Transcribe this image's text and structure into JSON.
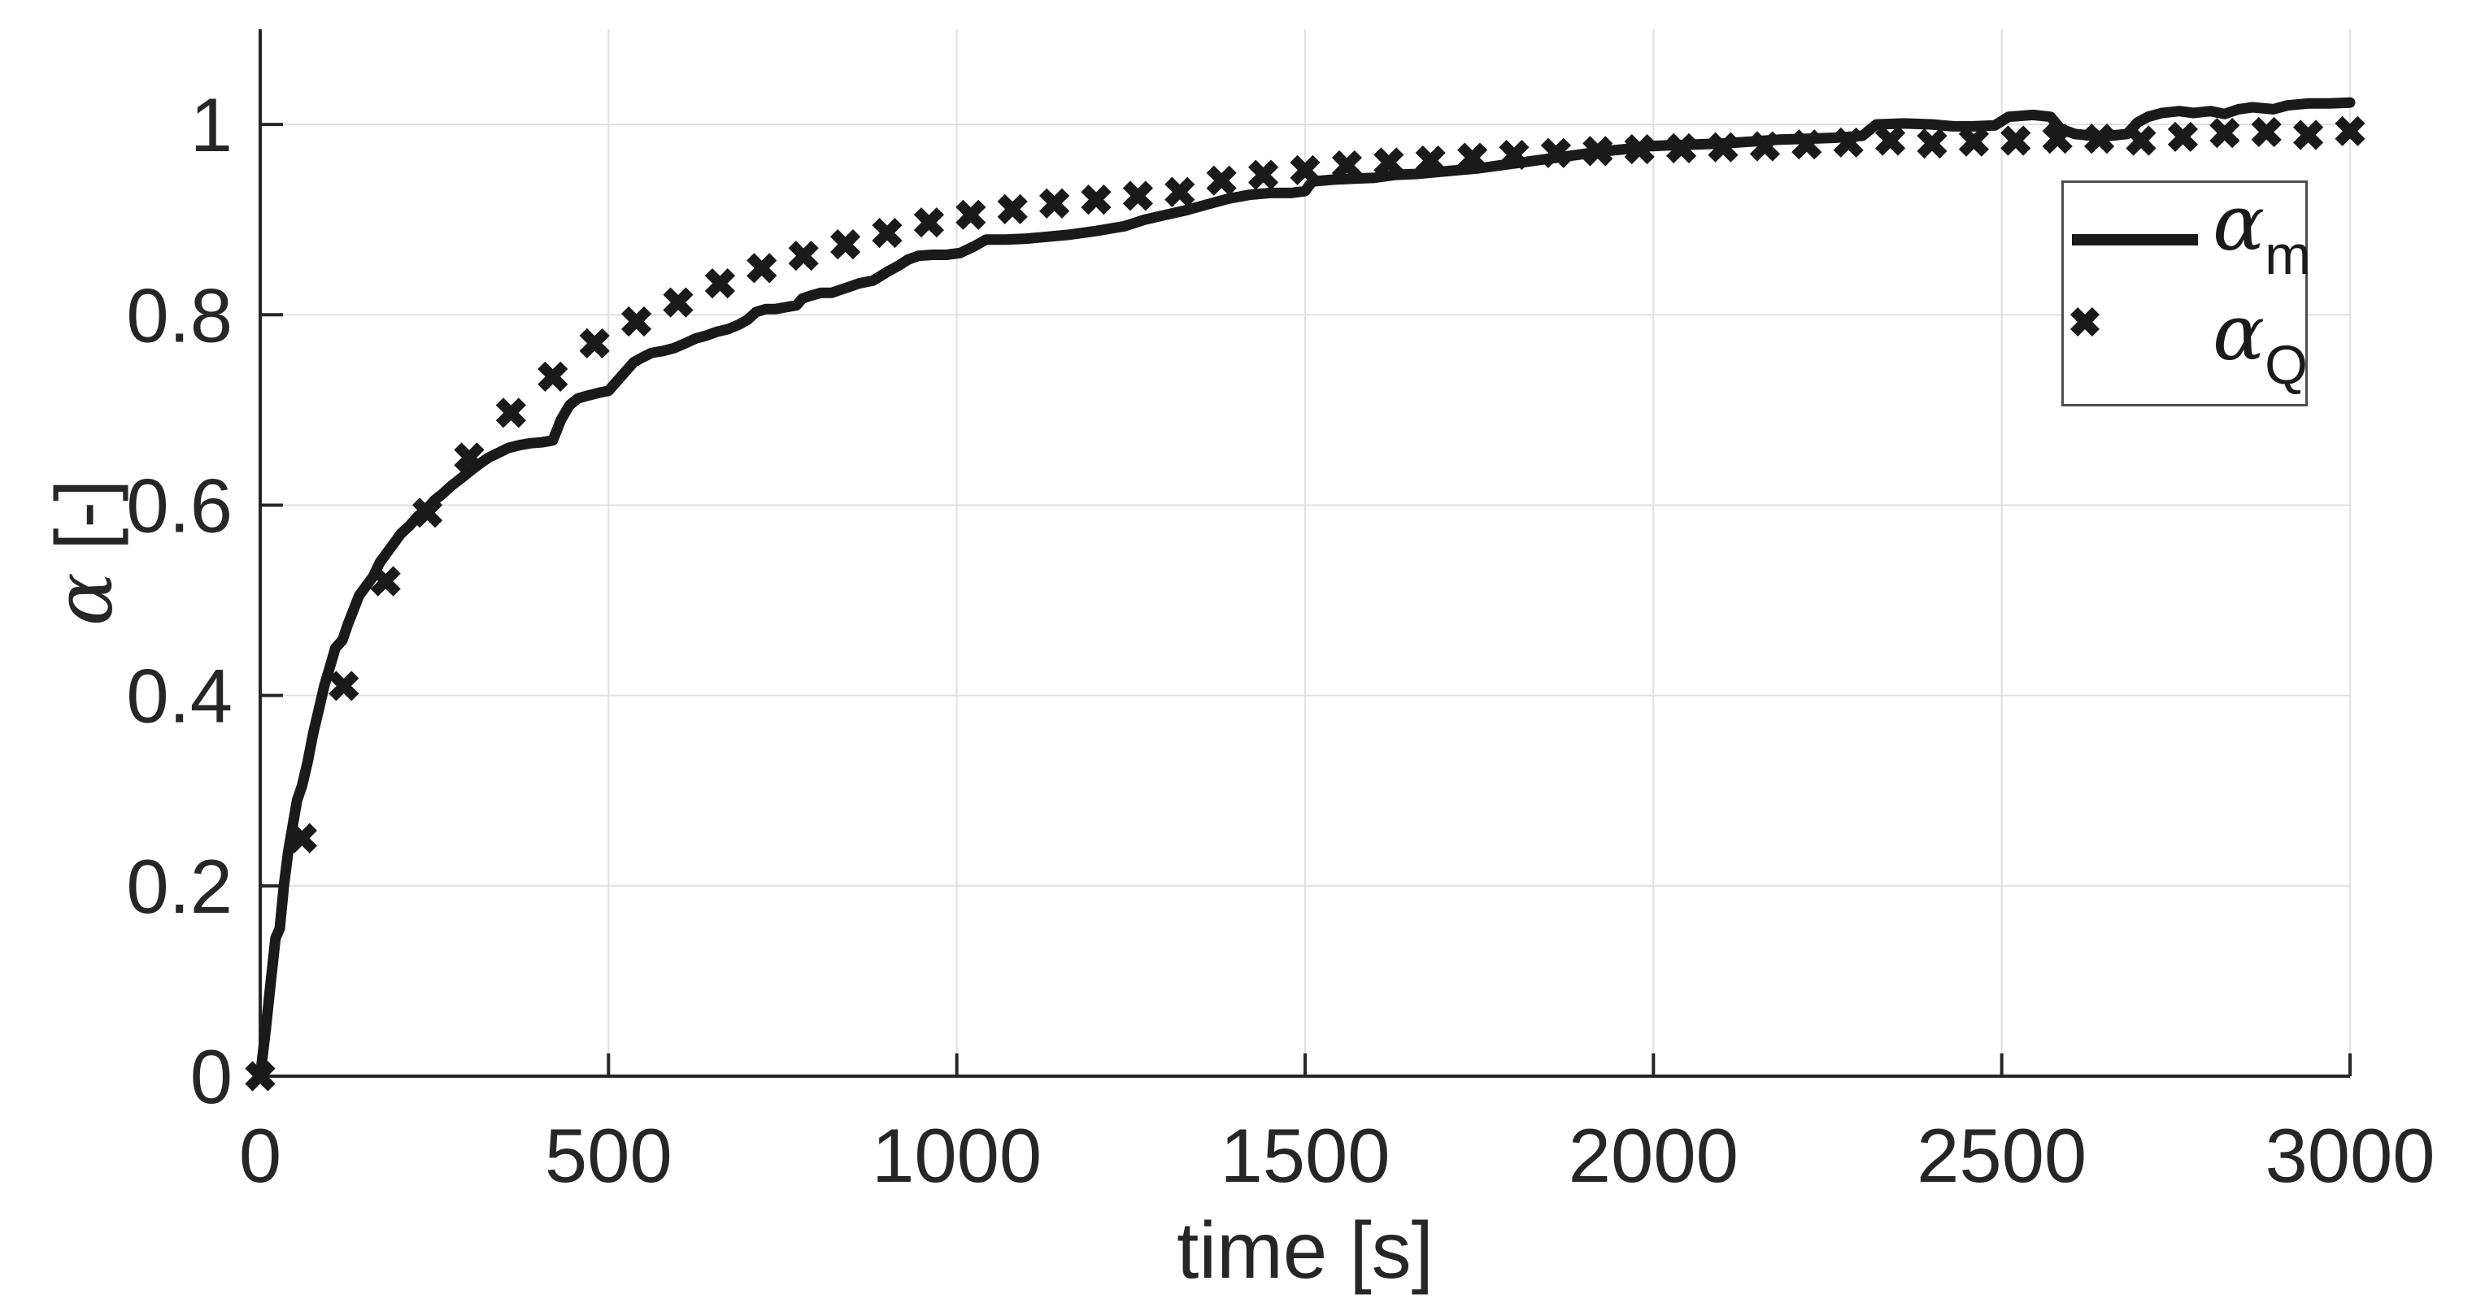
{
  "colors": {
    "background": "#ffffff",
    "series": "#1a1a1a",
    "grid": "#e0e0e0",
    "axis": "#262626",
    "text": "#262626",
    "legend_border": "#4d4d4d"
  },
  "chart_data": {
    "type": "line",
    "title": "",
    "xlabel": "time [s]",
    "ylabel_symbol": "α",
    "ylabel_rest": " [-]",
    "xlim": [
      0,
      3000
    ],
    "ylim": [
      0,
      1.1
    ],
    "grid": true,
    "legend_position": "upper-right-inside",
    "xticks": {
      "values": [
        0,
        500,
        1000,
        1500,
        2000,
        2500,
        3000
      ],
      "labels": [
        "0",
        "500",
        "1000",
        "1500",
        "2000",
        "2500",
        "3000"
      ]
    },
    "yticks": {
      "values": [
        0,
        0.2,
        0.4,
        0.6,
        0.8,
        1
      ],
      "labels": [
        "0",
        "0.2",
        "0.4",
        "0.6",
        "0.8",
        "1"
      ]
    },
    "legend": {
      "entries": [
        {
          "type": "line",
          "symbol": "α",
          "subscript": "m"
        },
        {
          "type": "marker-x",
          "symbol": "α",
          "subscript": "Q"
        }
      ]
    },
    "series": [
      {
        "name": "alpha_m",
        "style": "solid-line",
        "points": [
          [
            0,
            0
          ],
          [
            8,
            0.05
          ],
          [
            16,
            0.105
          ],
          [
            22,
            0.145
          ],
          [
            28,
            0.155
          ],
          [
            34,
            0.2
          ],
          [
            40,
            0.235
          ],
          [
            47,
            0.265
          ],
          [
            53,
            0.29
          ],
          [
            60,
            0.305
          ],
          [
            68,
            0.33
          ],
          [
            76,
            0.36
          ],
          [
            84,
            0.385
          ],
          [
            92,
            0.41
          ],
          [
            100,
            0.43
          ],
          [
            108,
            0.45
          ],
          [
            118,
            0.458
          ],
          [
            126,
            0.475
          ],
          [
            134,
            0.49
          ],
          [
            142,
            0.505
          ],
          [
            152,
            0.515
          ],
          [
            162,
            0.525
          ],
          [
            172,
            0.54
          ],
          [
            182,
            0.55
          ],
          [
            192,
            0.56
          ],
          [
            202,
            0.57
          ],
          [
            214,
            0.578
          ],
          [
            226,
            0.588
          ],
          [
            238,
            0.595
          ],
          [
            250,
            0.605
          ],
          [
            262,
            0.612
          ],
          [
            274,
            0.62
          ],
          [
            288,
            0.628
          ],
          [
            300,
            0.635
          ],
          [
            314,
            0.643
          ],
          [
            328,
            0.65
          ],
          [
            342,
            0.655
          ],
          [
            356,
            0.66
          ],
          [
            372,
            0.663
          ],
          [
            388,
            0.665
          ],
          [
            404,
            0.666
          ],
          [
            420,
            0.668
          ],
          [
            432,
            0.69
          ],
          [
            444,
            0.705
          ],
          [
            456,
            0.712
          ],
          [
            470,
            0.715
          ],
          [
            486,
            0.718
          ],
          [
            500,
            0.72
          ],
          [
            512,
            0.73
          ],
          [
            524,
            0.74
          ],
          [
            536,
            0.75
          ],
          [
            548,
            0.755
          ],
          [
            562,
            0.76
          ],
          [
            578,
            0.762
          ],
          [
            594,
            0.765
          ],
          [
            610,
            0.77
          ],
          [
            625,
            0.775
          ],
          [
            640,
            0.778
          ],
          [
            655,
            0.782
          ],
          [
            672,
            0.785
          ],
          [
            688,
            0.79
          ],
          [
            700,
            0.795
          ],
          [
            712,
            0.803
          ],
          [
            726,
            0.806
          ],
          [
            740,
            0.806
          ],
          [
            755,
            0.808
          ],
          [
            770,
            0.81
          ],
          [
            778,
            0.817
          ],
          [
            790,
            0.82
          ],
          [
            805,
            0.823
          ],
          [
            820,
            0.823
          ],
          [
            840,
            0.828
          ],
          [
            860,
            0.833
          ],
          [
            880,
            0.836
          ],
          [
            900,
            0.845
          ],
          [
            915,
            0.851
          ],
          [
            930,
            0.858
          ],
          [
            945,
            0.862
          ],
          [
            965,
            0.863
          ],
          [
            985,
            0.863
          ],
          [
            1005,
            0.865
          ],
          [
            1025,
            0.872
          ],
          [
            1042,
            0.879
          ],
          [
            1070,
            0.879
          ],
          [
            1100,
            0.88
          ],
          [
            1130,
            0.882
          ],
          [
            1160,
            0.884
          ],
          [
            1200,
            0.888
          ],
          [
            1240,
            0.893
          ],
          [
            1270,
            0.9
          ],
          [
            1300,
            0.905
          ],
          [
            1330,
            0.91
          ],
          [
            1360,
            0.916
          ],
          [
            1390,
            0.922
          ],
          [
            1420,
            0.926
          ],
          [
            1450,
            0.928
          ],
          [
            1480,
            0.928
          ],
          [
            1500,
            0.93
          ],
          [
            1510,
            0.94
          ],
          [
            1540,
            0.942
          ],
          [
            1570,
            0.943
          ],
          [
            1600,
            0.944
          ],
          [
            1630,
            0.947
          ],
          [
            1660,
            0.948
          ],
          [
            1690,
            0.95
          ],
          [
            1720,
            0.952
          ],
          [
            1750,
            0.954
          ],
          [
            1780,
            0.957
          ],
          [
            1810,
            0.96
          ],
          [
            1840,
            0.963
          ],
          [
            1870,
            0.966
          ],
          [
            1900,
            0.969
          ],
          [
            1930,
            0.972
          ],
          [
            1960,
            0.974
          ],
          [
            1990,
            0.977
          ],
          [
            2020,
            0.978
          ],
          [
            2060,
            0.979
          ],
          [
            2100,
            0.98
          ],
          [
            2140,
            0.982
          ],
          [
            2180,
            0.984
          ],
          [
            2220,
            0.985
          ],
          [
            2260,
            0.986
          ],
          [
            2300,
            0.988
          ],
          [
            2320,
            1.0
          ],
          [
            2360,
            1.001
          ],
          [
            2400,
            1.0
          ],
          [
            2430,
            0.998
          ],
          [
            2460,
            0.998
          ],
          [
            2490,
            0.999
          ],
          [
            2510,
            1.008
          ],
          [
            2545,
            1.01
          ],
          [
            2570,
            1.008
          ],
          [
            2585,
            0.995
          ],
          [
            2605,
            0.99
          ],
          [
            2630,
            0.988
          ],
          [
            2655,
            0.988
          ],
          [
            2680,
            0.99
          ],
          [
            2695,
            1.002
          ],
          [
            2710,
            1.008
          ],
          [
            2730,
            1.012
          ],
          [
            2755,
            1.014
          ],
          [
            2775,
            1.012
          ],
          [
            2800,
            1.014
          ],
          [
            2820,
            1.011
          ],
          [
            2840,
            1.016
          ],
          [
            2860,
            1.018
          ],
          [
            2890,
            1.016
          ],
          [
            2910,
            1.02
          ],
          [
            2940,
            1.022
          ],
          [
            2970,
            1.022
          ],
          [
            3000,
            1.023
          ]
        ]
      },
      {
        "name": "alpha_Q",
        "style": "x-markers",
        "points": [
          [
            0,
            0
          ],
          [
            60,
            0.25
          ],
          [
            120,
            0.41
          ],
          [
            180,
            0.52
          ],
          [
            240,
            0.592
          ],
          [
            300,
            0.65
          ],
          [
            360,
            0.697
          ],
          [
            420,
            0.735
          ],
          [
            480,
            0.77
          ],
          [
            540,
            0.793
          ],
          [
            600,
            0.813
          ],
          [
            660,
            0.833
          ],
          [
            720,
            0.849
          ],
          [
            780,
            0.862
          ],
          [
            840,
            0.874
          ],
          [
            900,
            0.886
          ],
          [
            960,
            0.897
          ],
          [
            1020,
            0.905
          ],
          [
            1080,
            0.911
          ],
          [
            1140,
            0.917
          ],
          [
            1200,
            0.921
          ],
          [
            1260,
            0.925
          ],
          [
            1320,
            0.929
          ],
          [
            1380,
            0.941
          ],
          [
            1440,
            0.947
          ],
          [
            1500,
            0.952
          ],
          [
            1560,
            0.957
          ],
          [
            1620,
            0.96
          ],
          [
            1680,
            0.962
          ],
          [
            1740,
            0.965
          ],
          [
            1800,
            0.968
          ],
          [
            1860,
            0.97
          ],
          [
            1920,
            0.972
          ],
          [
            1980,
            0.974
          ],
          [
            2040,
            0.975
          ],
          [
            2100,
            0.976
          ],
          [
            2160,
            0.977
          ],
          [
            2220,
            0.979
          ],
          [
            2280,
            0.981
          ],
          [
            2340,
            0.983
          ],
          [
            2400,
            0.98
          ],
          [
            2460,
            0.982
          ],
          [
            2520,
            0.983
          ],
          [
            2580,
            0.985
          ],
          [
            2640,
            0.985
          ],
          [
            2700,
            0.983
          ],
          [
            2760,
            0.987
          ],
          [
            2820,
            0.991
          ],
          [
            2880,
            0.992
          ],
          [
            2940,
            0.989
          ],
          [
            3000,
            0.993
          ]
        ]
      }
    ]
  }
}
